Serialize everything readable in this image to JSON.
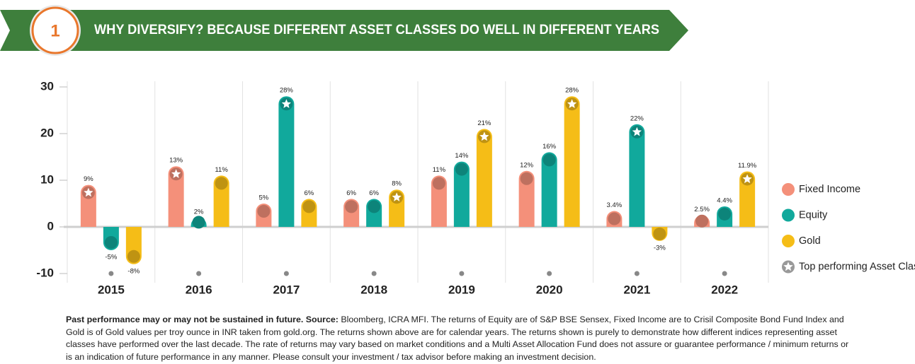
{
  "banner": {
    "number": "1",
    "title": "WHY DIVERSIFY? BECAUSE DIFFERENT ASSET CLASSES DO WELL IN DIFFERENT YEARS"
  },
  "chart_data": {
    "type": "bar",
    "categories": [
      "2015",
      "2016",
      "2017",
      "2018",
      "2019",
      "2020",
      "2021",
      "2022"
    ],
    "series": [
      {
        "name": "Fixed Income",
        "color": "#f4907a",
        "values": [
          9,
          13,
          5,
          6,
          11,
          12,
          3.4,
          2.5
        ],
        "value_labels": [
          "9%",
          "13%",
          "5%",
          "6%",
          "11%",
          "12%",
          "3.4%",
          "2.5%"
        ]
      },
      {
        "name": "Equity",
        "color": "#11a99c",
        "values": [
          -5,
          2,
          28,
          6,
          14,
          16,
          22,
          4.4
        ],
        "value_labels": [
          "-5%",
          "2%",
          "28%",
          "6%",
          "14%",
          "16%",
          "22%",
          "4.4%"
        ]
      },
      {
        "name": "Gold",
        "color": "#f5bd17",
        "values": [
          -8,
          11,
          6,
          8,
          21,
          28,
          -3,
          11.9
        ],
        "value_labels": [
          "-8%",
          "11%",
          "6%",
          "8%",
          "21%",
          "28%",
          "-3%",
          "11.9%"
        ]
      }
    ],
    "top_series": [
      0,
      0,
      1,
      2,
      2,
      2,
      1,
      2
    ],
    "top_legend": "Top performing Asset Class",
    "ylim": [
      -10,
      30
    ],
    "yticks": [
      30,
      20,
      10,
      0,
      -10
    ],
    "legend": "right"
  },
  "notes": {
    "bold": "Past performance may or may not be sustained in future. Source:",
    "text": " Bloomberg, ICRA MFI. The returns of Equity are of S&P BSE Sensex, Fixed Income are to Crisil Composite Bond Fund Index and Gold is of Gold values per troy ounce in INR taken from gold.org. The returns shown above are for calendar years. The returns shown is purely to demonstrate how different indices representing asset classes have performed over the last decade. The rate of returns may vary based on market conditions and a Multi Asset Allocation Fund does not assure or guarantee performance / minimum returns or is an indication of future performance in any manner. Please consult your investment / tax advisor before making an investment decision."
  }
}
